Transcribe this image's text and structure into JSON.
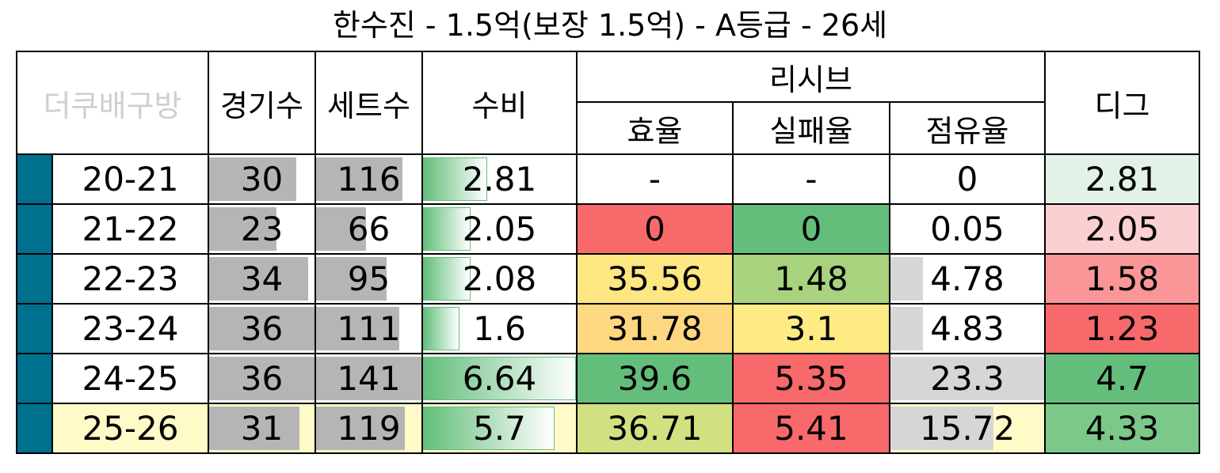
{
  "title": "한수진 - 1.5억(보장 1.5억) - A등급 - 26세",
  "headers": {
    "brand": "더쿠배구방",
    "games": "경기수",
    "sets": "세트수",
    "defense": "수비",
    "receive": "리시브",
    "efficiency": "효율",
    "fail_rate": "실패율",
    "share": "점유율",
    "dig": "디그"
  },
  "rows": [
    {
      "season": "20-21",
      "games": "30",
      "sets": "116",
      "defense": "2.81",
      "eff": "-",
      "fail": "-",
      "share": "0",
      "dig": "2.81",
      "games_fill": 0.83,
      "sets_fill": 0.82,
      "def_fill": 0.42,
      "share_fill": 0,
      "eff_color": "#ffffff",
      "fail_color": "#ffffff",
      "dig_color": "#e3f2e7"
    },
    {
      "season": "21-22",
      "games": "23",
      "sets": "66",
      "defense": "2.05",
      "eff": "0",
      "fail": "0",
      "share": "0.05",
      "dig": "2.05",
      "games_fill": 0.64,
      "sets_fill": 0.47,
      "def_fill": 0.31,
      "share_fill": 0,
      "eff_color": "#f8696b",
      "fail_color": "#63be7b",
      "dig_color": "#fbd0d2"
    },
    {
      "season": "22-23",
      "games": "34",
      "sets": "95",
      "defense": "2.08",
      "eff": "35.56",
      "fail": "1.48",
      "share": "4.78",
      "dig": "1.58",
      "games_fill": 0.94,
      "sets_fill": 0.67,
      "def_fill": 0.31,
      "share_fill": 0.21,
      "eff_color": "#fee782",
      "fail_color": "#a9d27f",
      "dig_color": "#fa9698"
    },
    {
      "season": "23-24",
      "games": "36",
      "sets": "111",
      "defense": "1.6",
      "eff": "31.78",
      "fail": "3.1",
      "share": "4.83",
      "dig": "1.23",
      "games_fill": 1.0,
      "sets_fill": 0.79,
      "def_fill": 0.24,
      "share_fill": 0.21,
      "eff_color": "#fed880",
      "fail_color": "#ffeb84",
      "dig_color": "#f8696b"
    },
    {
      "season": "24-25",
      "games": "36",
      "sets": "141",
      "defense": "6.64",
      "eff": "39.6",
      "fail": "5.35",
      "share": "23.3",
      "dig": "4.7",
      "games_fill": 1.0,
      "sets_fill": 1.0,
      "def_fill": 1.0,
      "share_fill": 1.0,
      "eff_color": "#63be7b",
      "fail_color": "#f8696b",
      "dig_color": "#63be7b"
    },
    {
      "season": "25-26",
      "games": "31",
      "sets": "119",
      "defense": "5.7",
      "eff": "36.71",
      "fail": "5.41",
      "share": "15.72",
      "dig": "4.33",
      "games_fill": 0.86,
      "sets_fill": 0.84,
      "def_fill": 0.86,
      "share_fill": 0.67,
      "eff_color": "#d3e082",
      "fail_color": "#f8696b",
      "dig_color": "#7cc78a"
    }
  ],
  "colors": {
    "marker": "#00708f",
    "highlight": "#fffbc8"
  }
}
